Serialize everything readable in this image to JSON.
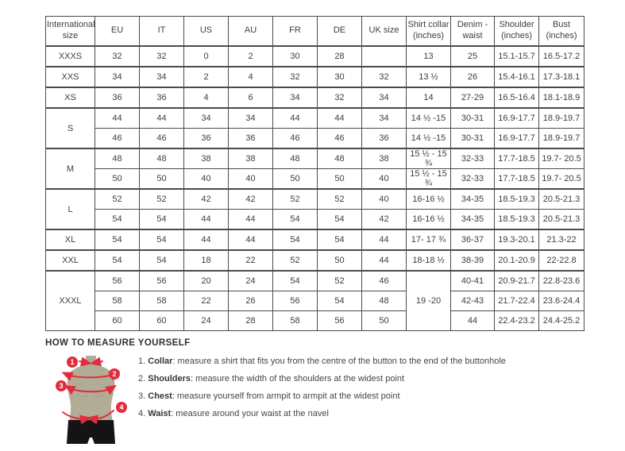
{
  "colors": {
    "border": "#4b4b4b",
    "text": "#3e3e3e",
    "accent_red": "#e22c3c",
    "torso": "#b1ac96",
    "shorts": "#141414"
  },
  "table": {
    "headers": [
      "International size",
      "EU",
      "IT",
      "US",
      "AU",
      "FR",
      "DE",
      "UK size",
      "Shirt collar (inches)",
      "Denim - waist",
      "Shoulder (inches)",
      "Bust (inches)"
    ],
    "groups": [
      {
        "label": "XXXS",
        "rows": [
          [
            "32",
            "32",
            "0",
            "2",
            "30",
            "28",
            "",
            "13",
            "25",
            "15.1-15.7",
            "16.5-17.2"
          ]
        ]
      },
      {
        "label": "XXS",
        "rows": [
          [
            "34",
            "34",
            "2",
            "4",
            "32",
            "30",
            "32",
            "13 ½",
            "26",
            "15.4-16.1",
            "17.3-18.1"
          ]
        ]
      },
      {
        "label": "XS",
        "rows": [
          [
            "36",
            "36",
            "4",
            "6",
            "34",
            "32",
            "34",
            "14",
            "27-29",
            "16.5-16.4",
            "18.1-18.9"
          ]
        ]
      },
      {
        "label": "S",
        "rows": [
          [
            "44",
            "44",
            "34",
            "34",
            "44",
            "44",
            "34",
            "14 ½ -15",
            "30-31",
            "16.9-17.7",
            "18.9-19.7"
          ],
          [
            "46",
            "46",
            "36",
            "36",
            "46",
            "46",
            "36",
            "14 ½ -15",
            "30-31",
            "16.9-17.7",
            "18.9-19.7"
          ]
        ]
      },
      {
        "label": "M",
        "rows": [
          [
            "48",
            "48",
            "38",
            "38",
            "48",
            "48",
            "38",
            "15 ½ - 15 ¾",
            "32-33",
            "17.7-18.5",
            "19.7- 20.5"
          ],
          [
            "50",
            "50",
            "40",
            "40",
            "50",
            "50",
            "40",
            "15 ½ - 15 ¾",
            "32-33",
            "17.7-18.5",
            "19.7- 20.5"
          ]
        ]
      },
      {
        "label": "L",
        "rows": [
          [
            "52",
            "52",
            "42",
            "42",
            "52",
            "52",
            "40",
            "16-16 ½",
            "34-35",
            "18.5-19.3",
            "20.5-21.3"
          ],
          [
            "54",
            "54",
            "44",
            "44",
            "54",
            "54",
            "42",
            "16-16 ½",
            "34-35",
            "18.5-19.3",
            "20.5-21.3"
          ]
        ]
      },
      {
        "label": "XL",
        "rows": [
          [
            "54",
            "54",
            "44",
            "44",
            "54",
            "54",
            "44",
            "17- 17 ¾",
            "36-37",
            "19.3-20.1",
            "21.3-22"
          ]
        ]
      },
      {
        "label": "XXL",
        "rows": [
          [
            "54",
            "54",
            "18",
            "22",
            "52",
            "50",
            "44",
            "18-18 ½",
            "38-39",
            "20.1-20.9",
            "22-22.8"
          ]
        ]
      },
      {
        "label": "XXXL",
        "collar_span": "19 -20",
        "rows": [
          [
            "56",
            "56",
            "20",
            "24",
            "54",
            "52",
            "46",
            "40-41",
            "20.9-21.7",
            "22.8-23.6"
          ],
          [
            "58",
            "58",
            "22",
            "26",
            "56",
            "54",
            "48",
            "42-43",
            "21.7-22.4",
            "23.6-24.4"
          ],
          [
            "60",
            "60",
            "24",
            "28",
            "58",
            "56",
            "50",
            "44",
            "22.4-23.2",
            "24.4-25.2"
          ]
        ]
      }
    ]
  },
  "measure": {
    "heading": "HOW TO MEASURE YOURSELF",
    "figure": {
      "badges": [
        "1",
        "2",
        "3",
        "4"
      ]
    },
    "instructions": [
      {
        "num": "1.",
        "term": "Collar",
        "rest": ": measure a shirt that fits you from the centre of the button to the end of the buttonhole"
      },
      {
        "num": "2.",
        "term": "Shoulders",
        "rest": ": measure the width of the shoulders at the widest point"
      },
      {
        "num": "3.",
        "term": "Chest",
        "rest": ": measure yourself from armpit to armpit at the widest point"
      },
      {
        "num": "4.",
        "term": "Waist",
        "rest": ": measure around your waist at the navel"
      }
    ]
  }
}
